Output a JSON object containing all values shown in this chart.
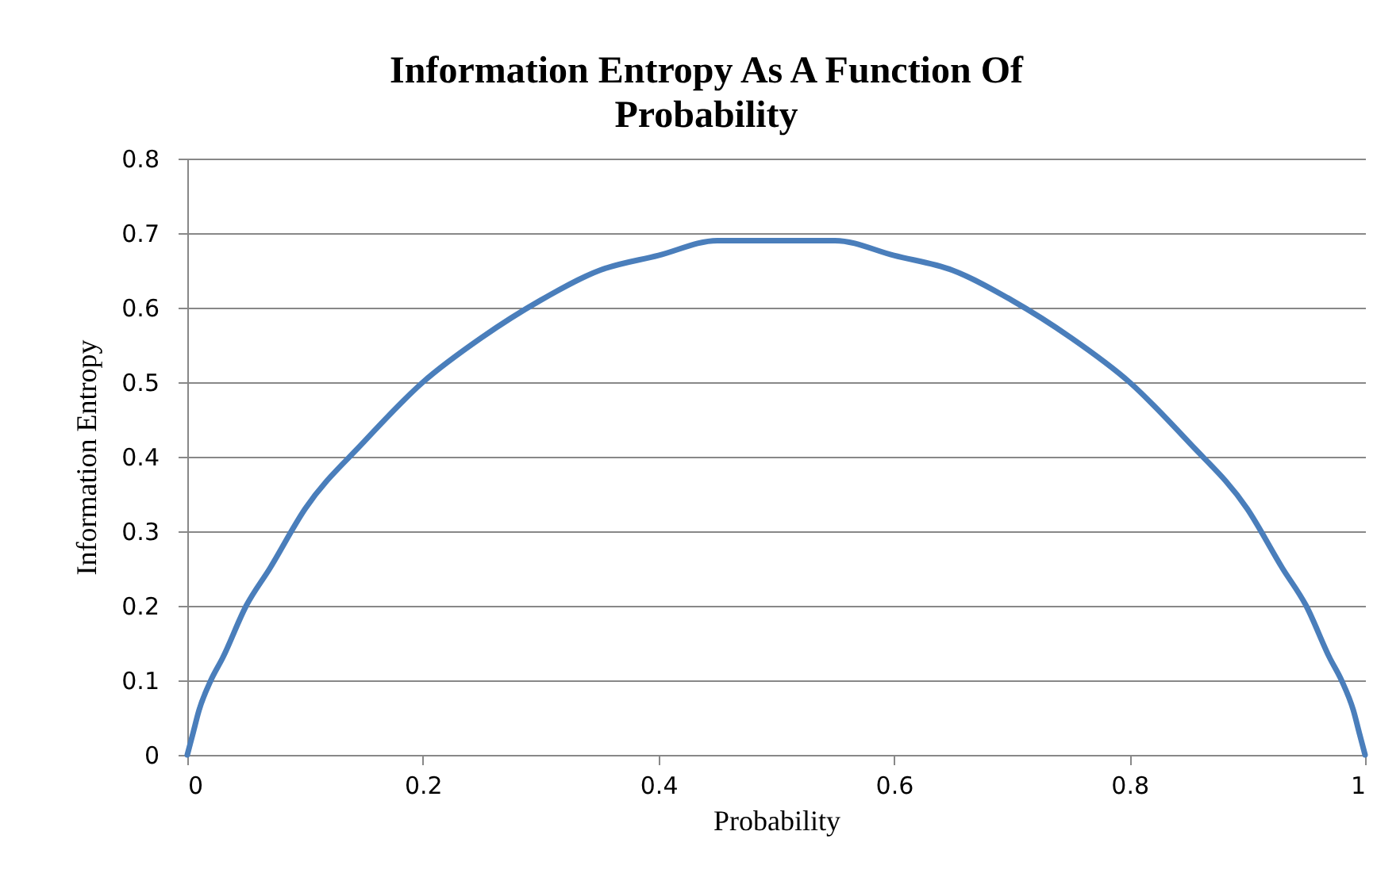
{
  "chart_data": {
    "type": "line",
    "title": "Information Entropy As A Function Of Probability",
    "xlabel": "Probability",
    "ylabel": "Information Entropy",
    "x": [
      0,
      0.005,
      0.01,
      0.02,
      0.03,
      0.05,
      0.07,
      0.1,
      0.15,
      0.2,
      0.25,
      0.3,
      0.35,
      0.4,
      0.45,
      0.5,
      0.55,
      0.6,
      0.65,
      0.7,
      0.75,
      0.8,
      0.85,
      0.9,
      0.93,
      0.95,
      0.97,
      0.98,
      0.99,
      0.995,
      1
    ],
    "series": [
      {
        "color": "#4a7ebb",
        "values": [
          0,
          0.03,
          0.06,
          0.1,
          0.13,
          0.2,
          0.25,
          0.33,
          0.42,
          0.5,
          0.56,
          0.61,
          0.65,
          0.67,
          0.69,
          0.69,
          0.69,
          0.67,
          0.65,
          0.61,
          0.56,
          0.5,
          0.42,
          0.33,
          0.25,
          0.2,
          0.13,
          0.1,
          0.06,
          0.03,
          0
        ]
      }
    ],
    "xlim": [
      0,
      1
    ],
    "xticks": [
      0,
      0.2,
      0.4,
      0.6,
      0.8,
      1
    ],
    "ylim": [
      0,
      0.8
    ],
    "yticks": [
      0,
      0.1,
      0.2,
      0.3,
      0.4,
      0.5,
      0.6,
      0.7,
      0.8
    ],
    "grid": "y",
    "legend": false,
    "marker": "none",
    "line_style": "solid"
  }
}
